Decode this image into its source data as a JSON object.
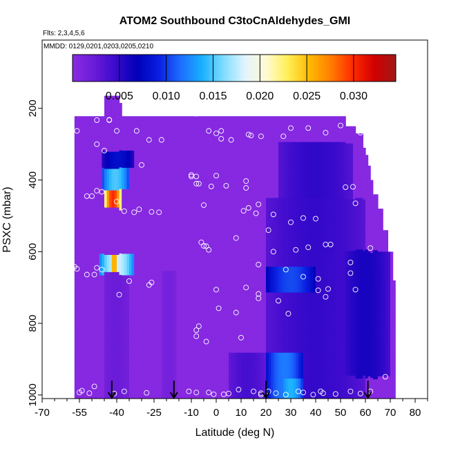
{
  "chart_data": {
    "type": "heatmap",
    "title": "ATOM2 Southbound C3toCnAldehydes_GMI",
    "flights_label": "Flts: 2,3,4,5,6",
    "dates_label": "MMDD: 0129,0201,0203,0205,0210",
    "xlabel": "Latitude (deg N)",
    "ylabel": "PSXC (mbar)",
    "xlim": [
      -70,
      85
    ],
    "ylim": [
      1010,
      0
    ],
    "x_ticks": [
      -70,
      -55,
      -40,
      -25,
      -10,
      0,
      10,
      20,
      30,
      40,
      50,
      60,
      70,
      80
    ],
    "x_tick_labels": [
      "-70",
      "-55",
      "-40",
      "-25",
      "-10",
      "0",
      "10",
      "20",
      "30",
      "40",
      "50",
      "60",
      "70",
      "80"
    ],
    "y_ticks": [
      200,
      400,
      600,
      800,
      1000
    ],
    "y_tick_labels": [
      "200",
      "400",
      "600",
      "800",
      "1000"
    ],
    "colorbar": {
      "min": 0.0,
      "max": 0.0345,
      "ticks": [
        0.005,
        0.01,
        0.015,
        0.02,
        0.025,
        0.03
      ],
      "tick_labels": [
        "0.005",
        "0.010",
        "0.015",
        "0.020",
        "0.025",
        "0.030"
      ],
      "colors": [
        "#8a2be2",
        "#6a1bd8",
        "#3a0acc",
        "#0000b8",
        "#0a1ee0",
        "#1e6cff",
        "#17b0ff",
        "#7fdcff",
        "#e2f4ff",
        "#fffbd2",
        "#ffee55",
        "#ffb900",
        "#ff7c00",
        "#ff2a00",
        "#d20000",
        "#a01818"
      ]
    },
    "background_value": 0.0003,
    "profile_x_edges": [
      -57,
      -56,
      -55,
      -54,
      -53,
      -52,
      -51,
      -50,
      -49,
      -48,
      -47,
      -46,
      -45,
      -44,
      -43,
      -42,
      -41,
      -40,
      -39,
      -38,
      -37,
      -36,
      -35,
      -34,
      -33,
      -32,
      -31,
      -30,
      -29,
      -28,
      -27,
      -26,
      -25,
      -24,
      -23,
      -22,
      -21,
      -20,
      -19,
      -18,
      -17,
      -16,
      -15,
      -14,
      -13,
      -12,
      -11,
      -10,
      -9,
      -8,
      -7,
      -6,
      -5,
      -4,
      -3,
      -2,
      -1,
      0,
      1,
      2,
      3,
      4,
      5,
      6,
      7,
      8,
      9,
      10,
      11,
      12,
      13,
      14,
      15,
      16,
      17,
      18,
      19,
      20,
      21,
      22,
      23,
      24,
      25,
      26,
      27,
      28,
      29,
      30,
      31,
      32,
      33,
      34,
      35,
      36,
      37,
      38,
      39,
      40,
      41,
      42,
      43,
      44,
      45,
      46,
      47,
      48,
      49,
      50,
      51,
      52,
      53,
      54,
      55,
      56,
      57,
      58,
      59,
      60,
      61,
      62,
      63,
      64,
      65,
      66,
      67,
      68,
      69,
      70,
      71,
      72
    ],
    "top_pressure": [
      222,
      222,
      222,
      222,
      222,
      222,
      222,
      222,
      222,
      222,
      222,
      222,
      165,
      165,
      165,
      165,
      165,
      165,
      185,
      222,
      222,
      222,
      222,
      222,
      222,
      222,
      222,
      222,
      222,
      222,
      222,
      222,
      222,
      222,
      222,
      222,
      222,
      222,
      222,
      222,
      222,
      222,
      222,
      222,
      222,
      222,
      222,
      222,
      222,
      222,
      222,
      222,
      222,
      222,
      222,
      222,
      222,
      222,
      222,
      222,
      222,
      222,
      222,
      222,
      222,
      222,
      222,
      222,
      222,
      222,
      222,
      222,
      222,
      222,
      222,
      222,
      222,
      222,
      222,
      222,
      222,
      222,
      222,
      222,
      222,
      222,
      222,
      222,
      222,
      222,
      222,
      222,
      222,
      222,
      222,
      222,
      222,
      222,
      222,
      222,
      222,
      222,
      222,
      222,
      222,
      222,
      222,
      222,
      222,
      250,
      250,
      250,
      250,
      270,
      270,
      270,
      310,
      330,
      360,
      400,
      440,
      440,
      480,
      480,
      540,
      540,
      600,
      600,
      680,
      700,
      760,
      780,
      880
    ],
    "bottom_pressure": [
      1008,
      1008,
      1008,
      1008,
      1008,
      1008,
      1008,
      1008,
      1008,
      1008,
      1008,
      1008,
      1008,
      1008,
      1008,
      1008,
      1008,
      1008,
      1008,
      1008,
      1008,
      1008,
      1008,
      1008,
      1008,
      1008,
      1008,
      1008,
      1008,
      1008,
      1008,
      1008,
      1008,
      1008,
      1008,
      1008,
      1008,
      1008,
      1008,
      1008,
      1008,
      1008,
      1008,
      1008,
      1008,
      1008,
      1008,
      1008,
      1008,
      1008,
      1008,
      1008,
      1008,
      1008,
      1008,
      1008,
      1008,
      1008,
      1008,
      1008,
      1008,
      1008,
      1008,
      1008,
      1008,
      1008,
      1008,
      1008,
      1008,
      1008,
      1008,
      1008,
      1008,
      1008,
      1008,
      1008,
      1008,
      1008,
      1008,
      1008,
      1008,
      1008,
      1008,
      1008,
      1008,
      1008,
      1008,
      1008,
      1008,
      1008,
      1008,
      1008,
      1008,
      1008,
      1008,
      1008,
      1008,
      1008,
      1008,
      1008,
      1008,
      1008,
      1008,
      1008,
      1008,
      1008,
      1008,
      1008,
      1008,
      1008,
      1008,
      1008,
      1008,
      1008,
      1008,
      1008,
      1008,
      1008,
      1008,
      1008,
      1008,
      1008,
      1008,
      1008,
      1008,
      1008,
      1008,
      1008,
      1008,
      1008,
      1008,
      1008
    ],
    "high_value_regions": [
      {
        "lat": [
          20,
          60
        ],
        "pressure": [
          450,
          1008
        ],
        "value": 0.0048
      },
      {
        "lat": [
          25,
          55
        ],
        "pressure": [
          300,
          450
        ],
        "value": 0.005
      },
      {
        "lat": [
          50,
          70
        ],
        "pressure": [
          600,
          950
        ],
        "value": 0.006
      },
      {
        "lat": [
          20,
          40
        ],
        "pressure": [
          640,
          710
        ],
        "value": 0.0105
      },
      {
        "lat": [
          20,
          35
        ],
        "pressure": [
          880,
          1008
        ],
        "value": 0.012
      },
      {
        "lat": [
          25,
          35
        ],
        "pressure": [
          960,
          1008
        ],
        "value": 0.014
      },
      {
        "lat": [
          5,
          20
        ],
        "pressure": [
          880,
          1008
        ],
        "value": 0.004
      },
      {
        "lat": [
          -46,
          -33
        ],
        "pressure": [
          323,
          370
        ],
        "value": 0.008
      },
      {
        "lat": [
          -46,
          -35
        ],
        "pressure": [
          370,
          425
        ],
        "value": 0.015
      },
      {
        "lat": [
          -45,
          -38
        ],
        "pressure": [
          425,
          480
        ],
        "value": 0.03
      },
      {
        "lat": [
          -47,
          -33
        ],
        "pressure": [
          610,
          660
        ],
        "value": 0.018
      },
      {
        "lat": [
          -42,
          -40
        ],
        "pressure": [
          615,
          655
        ],
        "value": 0.028
      },
      {
        "lat": [
          -45,
          -35
        ],
        "pressure": [
          650,
          1008
        ],
        "value": 0.0022
      },
      {
        "lat": [
          -22,
          -16
        ],
        "pressure": [
          650,
          1008
        ],
        "value": 0.0015
      }
    ],
    "observation_points": [
      [
        -48,
        233
      ],
      [
        -43,
        233
      ],
      [
        -56,
        263
      ],
      [
        -48,
        300
      ],
      [
        -40,
        263
      ],
      [
        -43,
        232
      ],
      [
        -32,
        263
      ],
      [
        -27,
        288
      ],
      [
        -22,
        288
      ],
      [
        -8,
        215
      ],
      [
        -3,
        263
      ],
      [
        0,
        270
      ],
      [
        2,
        263
      ],
      [
        2,
        285
      ],
      [
        6,
        288
      ],
      [
        13,
        273
      ],
      [
        18,
        278
      ],
      [
        14,
        276
      ],
      [
        27,
        278
      ],
      [
        30,
        255
      ],
      [
        37,
        255
      ],
      [
        44,
        268
      ],
      [
        50,
        248
      ],
      [
        58,
        268
      ],
      [
        -52,
        445
      ],
      [
        -50,
        445
      ],
      [
        -48,
        430
      ],
      [
        -46,
        433
      ],
      [
        -45,
        318
      ],
      [
        -40,
        460
      ],
      [
        -37,
        487
      ],
      [
        -33,
        490
      ],
      [
        -31,
        482
      ],
      [
        -30,
        358
      ],
      [
        -26,
        489
      ],
      [
        -23,
        490
      ],
      [
        -10,
        386
      ],
      [
        -10,
        390
      ],
      [
        -8,
        390
      ],
      [
        -8,
        410
      ],
      [
        -7,
        410
      ],
      [
        -2,
        418
      ],
      [
        -5,
        470
      ],
      [
        4,
        416
      ],
      [
        0,
        388
      ],
      [
        12,
        403
      ],
      [
        12,
        422
      ],
      [
        13,
        478
      ],
      [
        11,
        486
      ],
      [
        17,
        468
      ],
      [
        16,
        493
      ],
      [
        23,
        496
      ],
      [
        30,
        518
      ],
      [
        35,
        506
      ],
      [
        40,
        508
      ],
      [
        52,
        420
      ],
      [
        55,
        419
      ],
      [
        56,
        465
      ],
      [
        -6,
        574
      ],
      [
        -5,
        584
      ],
      [
        -4,
        585
      ],
      [
        -3,
        595
      ],
      [
        8,
        562
      ],
      [
        21,
        540
      ],
      [
        23,
        600
      ],
      [
        32,
        595
      ],
      [
        37,
        588
      ],
      [
        46,
        580
      ],
      [
        44,
        580
      ],
      [
        54,
        630
      ],
      [
        54,
        660
      ],
      [
        62,
        590
      ],
      [
        56,
        706
      ],
      [
        44,
        726
      ],
      [
        41,
        676
      ],
      [
        35,
        670
      ],
      [
        28,
        650
      ],
      [
        17,
        636
      ],
      [
        12,
        700
      ],
      [
        8,
        770
      ],
      [
        1,
        758
      ],
      [
        0,
        706
      ],
      [
        -56,
        648
      ],
      [
        -57,
        642
      ],
      [
        -52,
        664
      ],
      [
        -49,
        664
      ],
      [
        -48,
        645
      ],
      [
        -46,
        650
      ],
      [
        -39,
        720
      ],
      [
        -35,
        682
      ],
      [
        -27,
        693
      ],
      [
        -26,
        686
      ],
      [
        -8,
        819
      ],
      [
        -7,
        808
      ],
      [
        -8,
        836
      ],
      [
        -4,
        851
      ],
      [
        10,
        840
      ],
      [
        17,
        730
      ],
      [
        17,
        718
      ],
      [
        25,
        737
      ],
      [
        29,
        773
      ],
      [
        41,
        708
      ],
      [
        45,
        704
      ],
      [
        -55,
        993
      ],
      [
        -54,
        988
      ],
      [
        -49,
        976
      ],
      [
        -41,
        996
      ],
      [
        -37,
        990
      ],
      [
        -28,
        994
      ],
      [
        -11,
        990
      ],
      [
        -8,
        993
      ],
      [
        -3,
        993
      ],
      [
        -1,
        998
      ],
      [
        3,
        998
      ],
      [
        5,
        996
      ],
      [
        9,
        985
      ],
      [
        15,
        990
      ],
      [
        18,
        995
      ],
      [
        21,
        990
      ],
      [
        24,
        995
      ],
      [
        28,
        999
      ],
      [
        33,
        990
      ],
      [
        35,
        993
      ],
      [
        39,
        999
      ],
      [
        43,
        995
      ],
      [
        48,
        997
      ],
      [
        54,
        990
      ],
      [
        58,
        996
      ],
      [
        62,
        990
      ],
      [
        68,
        949
      ],
      [
        -51,
        995
      ],
      [
        18,
        999
      ],
      [
        42,
        990
      ]
    ],
    "markers": [
      {
        "lat": -42,
        "label": ""
      },
      {
        "lat": -17,
        "label": ""
      },
      {
        "lat": 20,
        "label": ""
      },
      {
        "lat": 61,
        "label": ""
      }
    ]
  }
}
